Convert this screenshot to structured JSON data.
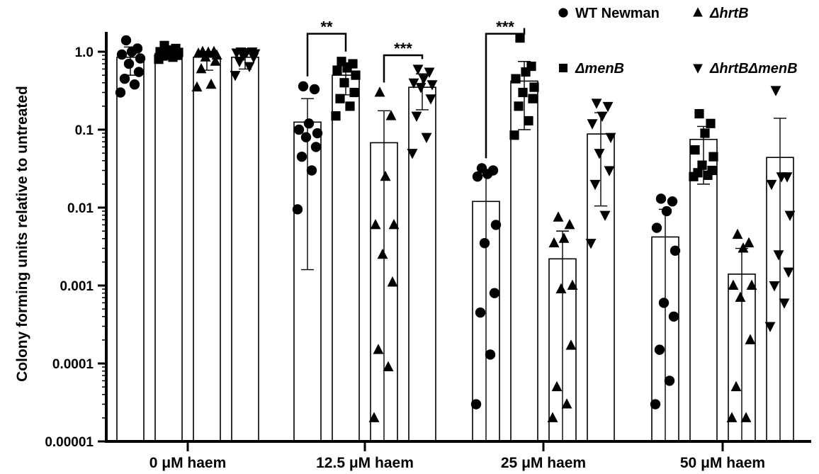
{
  "chart_data": {
    "type": "bar",
    "title": "",
    "xlabel": "",
    "ylabel": "Colony forming units relative to untreated",
    "yscale": "log",
    "ylim": [
      1e-05,
      1.6
    ],
    "yticks": [
      {
        "value": 1,
        "label": "1.0"
      },
      {
        "value": 0.1,
        "label": "0.1"
      },
      {
        "value": 0.01,
        "label": "0.01"
      },
      {
        "value": 0.001,
        "label": "0.001"
      },
      {
        "value": 0.0001,
        "label": "0.0001"
      },
      {
        "value": 1e-05,
        "label": "0.00001"
      }
    ],
    "categories": [
      "0 μM haem",
      "12.5 μM haem",
      "25 μM haem",
      "50 μM haem"
    ],
    "legend_placement": "top-right",
    "grid": false,
    "series": [
      {
        "name": "WT Newman",
        "marker": "circle",
        "values": [
          0.85,
          0.125,
          0.012,
          0.0042
        ],
        "error_low": [
          0.5,
          0.0016,
          1e-05,
          1e-05
        ],
        "error_high": [
          1.15,
          0.25,
          0.026,
          0.0095
        ],
        "points": [
          [
            0.3,
            0.38,
            0.45,
            0.55,
            0.7,
            0.82,
            0.92,
            1.0,
            1.1,
            1.4
          ],
          [
            0.0095,
            0.03,
            0.045,
            0.06,
            0.08,
            0.09,
            0.1,
            0.12,
            0.33,
            0.36
          ],
          [
            3e-05,
            0.00013,
            0.00045,
            0.0008,
            0.0035,
            0.006,
            0.025,
            0.027,
            0.03,
            0.032
          ],
          [
            3e-05,
            6e-05,
            0.00015,
            0.0004,
            0.0006,
            0.0028,
            0.0055,
            0.009,
            0.012,
            0.013
          ]
        ]
      },
      {
        "name": "ΔmenB",
        "marker": "square",
        "values": [
          0.95,
          0.5,
          0.42,
          0.075
        ],
        "error_low": [
          0.8,
          0.28,
          0.1,
          0.02
        ],
        "error_high": [
          1.15,
          0.72,
          0.75,
          0.11
        ],
        "points": [
          [
            0.8,
            0.85,
            0.88,
            0.9,
            0.92,
            0.98,
            1.0,
            1.05,
            1.1,
            1.2
          ],
          [
            0.15,
            0.2,
            0.25,
            0.3,
            0.4,
            0.5,
            0.58,
            0.62,
            0.7,
            0.75
          ],
          [
            0.085,
            0.13,
            0.2,
            0.25,
            0.3,
            0.35,
            0.45,
            0.55,
            0.65,
            1.5
          ],
          [
            0.025,
            0.026,
            0.028,
            0.03,
            0.035,
            0.045,
            0.055,
            0.09,
            0.12,
            0.16
          ]
        ]
      },
      {
        "name": "ΔhrtB",
        "marker": "triangle-up",
        "values": [
          0.85,
          0.068,
          0.0022,
          0.0014
        ],
        "error_low": [
          0.58,
          1e-05,
          1e-05,
          1e-05
        ],
        "error_high": [
          1.0,
          0.175,
          0.005,
          0.003
        ],
        "points": [
          [
            0.35,
            0.38,
            0.6,
            0.75,
            0.85,
            0.9,
            0.95,
            0.98,
            1.0,
            1.0
          ],
          [
            2e-05,
            9e-05,
            0.00015,
            0.0011,
            0.0025,
            0.006,
            0.006,
            0.025,
            0.15,
            0.3
          ],
          [
            2e-05,
            3e-05,
            5e-05,
            0.00017,
            0.0009,
            0.001,
            0.0035,
            0.004,
            0.006,
            0.0075
          ],
          [
            2e-05,
            2e-05,
            5e-05,
            0.0002,
            0.0007,
            0.001,
            0.001,
            0.003,
            0.0035,
            0.0045
          ]
        ]
      },
      {
        "name": "ΔhrtBΔmenB",
        "marker": "triangle-down",
        "values": [
          0.85,
          0.35,
          0.088,
          0.044
        ],
        "error_low": [
          0.6,
          0.18,
          0.0105,
          1e-05
        ],
        "error_high": [
          1.0,
          0.52,
          0.165,
          0.14
        ],
        "points": [
          [
            0.5,
            0.65,
            0.75,
            0.85,
            0.9,
            0.95,
            0.97,
            0.98,
            1.0,
            1.0
          ],
          [
            0.05,
            0.08,
            0.15,
            0.25,
            0.35,
            0.38,
            0.4,
            0.45,
            0.55,
            0.6
          ],
          [
            0.0035,
            0.008,
            0.02,
            0.03,
            0.05,
            0.08,
            0.12,
            0.15,
            0.2,
            0.22
          ],
          [
            0.0003,
            0.0006,
            0.001,
            0.0015,
            0.0025,
            0.008,
            0.02,
            0.025,
            0.025,
            0.32
          ]
        ]
      }
    ],
    "annotations": [
      {
        "text": "**",
        "category": 1,
        "from_series": 0,
        "to_series": 1,
        "level": 1.7
      },
      {
        "text": "***",
        "category": 1,
        "from_series": 2,
        "to_series": 3,
        "level": 0.9
      },
      {
        "text": "***",
        "category": 2,
        "from_series": 0,
        "to_series": 1,
        "level": 1.7
      }
    ]
  }
}
